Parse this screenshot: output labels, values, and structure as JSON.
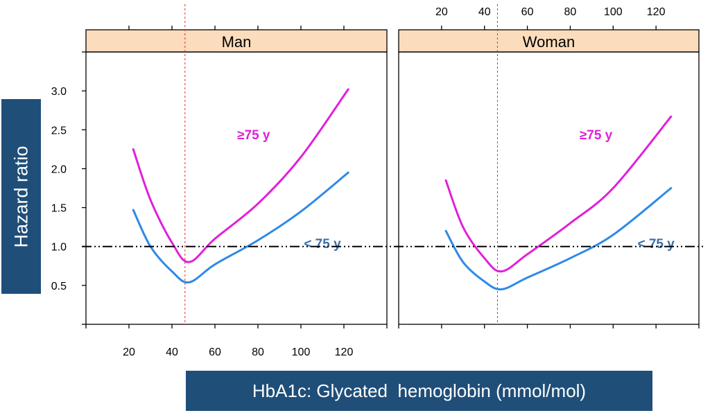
{
  "chart_data": {
    "type": "line",
    "title": "",
    "xlabel": "HbA1c: Glycated  hemoglobin (mmol/mol)",
    "ylabel": "Hazard ratio",
    "xlim": [
      0,
      140
    ],
    "ylim": [
      0,
      3.5
    ],
    "xticks": [
      "20",
      "40",
      "60",
      "80",
      "100",
      "120"
    ],
    "yticks": [
      "0.5",
      "1.0",
      "1.5",
      "2.0",
      "2.5",
      "3.0"
    ],
    "reference_hline": 1.0,
    "reference_vline": 48,
    "grid": false,
    "colors": {
      "older": "#e020d8",
      "younger": "#2e8ae6",
      "strip": "#fbdcbc",
      "label_box": "#1f4e79",
      "ref_v": "#e0302c"
    },
    "panels": [
      {
        "strip": "Man",
        "series": [
          {
            "name": "≥75 y",
            "x": [
              22,
              30,
              40,
              48,
              60,
              80,
              100,
              122
            ],
            "y": [
              2.25,
              1.6,
              1.05,
              0.8,
              1.1,
              1.55,
              2.15,
              3.02
            ]
          },
          {
            "name": "< 75 y",
            "x": [
              22,
              30,
              40,
              48,
              60,
              80,
              100,
              122
            ],
            "y": [
              1.47,
              1.0,
              0.68,
              0.54,
              0.77,
              1.08,
              1.45,
              1.95
            ]
          }
        ]
      },
      {
        "strip": "Woman",
        "series": [
          {
            "name": "≥75 y",
            "x": [
              22,
              30,
              40,
              48,
              60,
              80,
              100,
              127
            ],
            "y": [
              1.85,
              1.25,
              0.85,
              0.68,
              0.9,
              1.3,
              1.75,
              2.67
            ]
          },
          {
            "name": "< 75 y",
            "x": [
              22,
              30,
              40,
              48,
              60,
              80,
              100,
              127
            ],
            "y": [
              1.2,
              0.8,
              0.55,
              0.45,
              0.6,
              0.85,
              1.15,
              1.75
            ]
          }
        ]
      }
    ]
  }
}
